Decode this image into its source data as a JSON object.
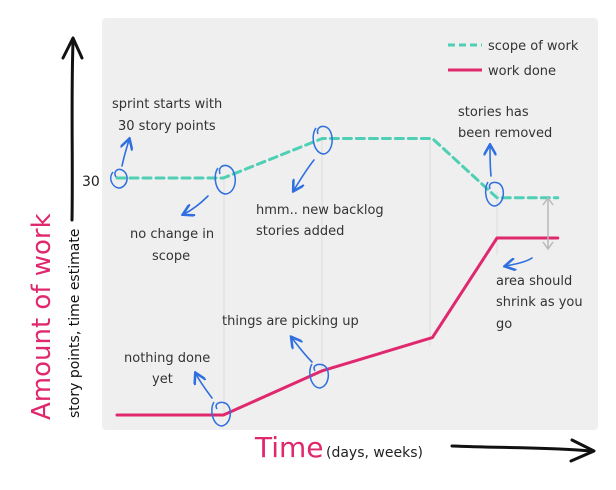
{
  "chart_data": {
    "type": "line",
    "title": "",
    "xlabel": "Time",
    "xlabel_unit": "(days, weeks)",
    "ylabel": "Amount of work",
    "ylabel_sub": "story points, time estimate",
    "x_ticks": [],
    "y_ticks": [
      {
        "label": "30",
        "value": 30
      }
    ],
    "ylim": [
      0,
      55
    ],
    "xlim": [
      0,
      10
    ],
    "grid": false,
    "legend_position": "top-right",
    "series": [
      {
        "name": "scope of work",
        "style": "dashed",
        "color": "#4fcfb5",
        "points": [
          [
            0,
            30
          ],
          [
            2.8,
            30
          ],
          [
            5.4,
            35
          ],
          [
            8.3,
            35
          ],
          [
            10,
            27.5
          ],
          [
            11.6,
            27.5
          ]
        ]
      },
      {
        "name": "work done",
        "style": "solid",
        "color": "#e0286e",
        "points": [
          [
            0,
            0
          ],
          [
            2.8,
            0
          ],
          [
            5.4,
            5.6
          ],
          [
            8.3,
            9.8
          ],
          [
            10,
            22.4
          ],
          [
            11.6,
            22.4
          ]
        ]
      }
    ],
    "annotations": [
      {
        "id": "sprint-start",
        "lines": [
          "sprint starts with",
          "30 story points"
        ]
      },
      {
        "id": "no-change",
        "lines": [
          "no change in",
          "scope"
        ]
      },
      {
        "id": "new-backlog",
        "lines": [
          "hmm.. new backlog",
          "stories added"
        ]
      },
      {
        "id": "stories-removed",
        "lines": [
          "stories has",
          "been removed"
        ]
      },
      {
        "id": "area-shrink",
        "lines": [
          "area should",
          "shrink as you",
          "go"
        ]
      },
      {
        "id": "picking-up",
        "lines": [
          "things are picking up"
        ]
      },
      {
        "id": "nothing-done",
        "lines": [
          "nothing done",
          "yet"
        ]
      }
    ],
    "colors": {
      "plot_background": "#efefef",
      "scope": "#4fcfb5",
      "done": "#e0286e",
      "annotation_arrow": "#2f6fdf",
      "axis": "#111111",
      "guide": "#dcdcdc"
    }
  }
}
